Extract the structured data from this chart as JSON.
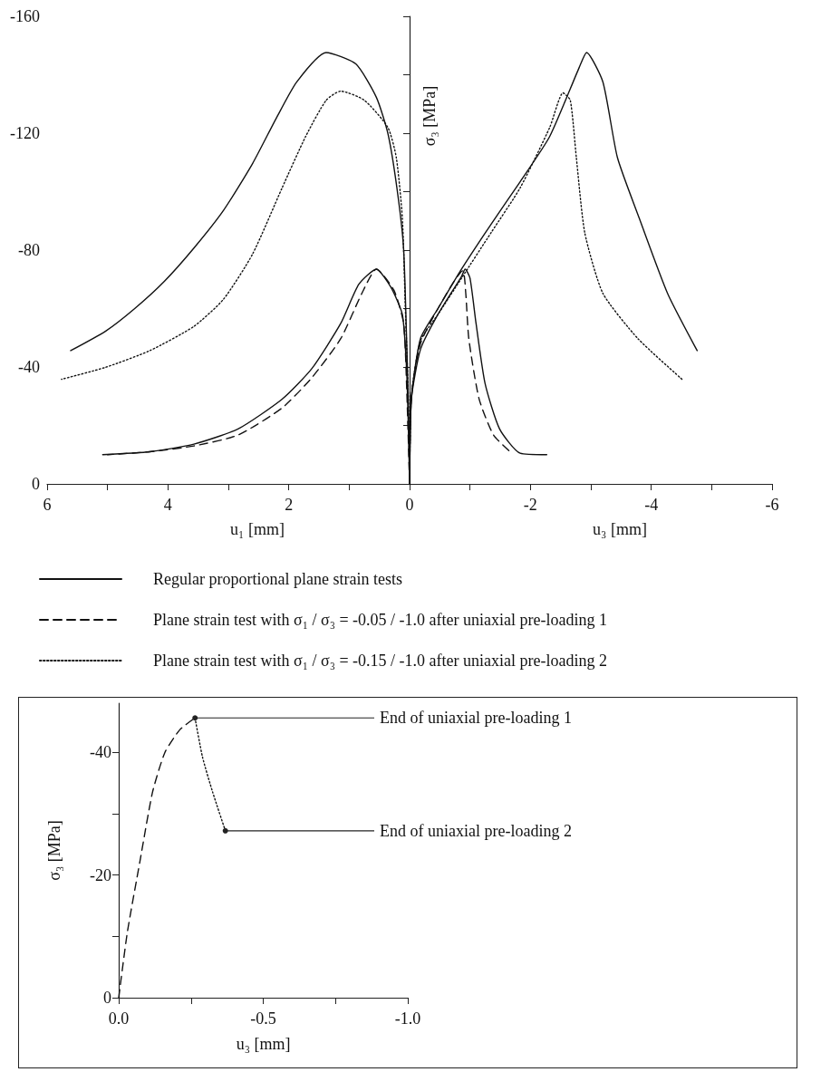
{
  "chart_data": [
    {
      "type": "line",
      "xlabel": "u₁ [mm]",
      "ylabel": "σ₃ [MPa]",
      "annotations": [
        "u₃ [mm]"
      ],
      "xlim": [
        6,
        -6
      ],
      "xticks": [
        6,
        {
          "value": 5,
          "label": null
        },
        4,
        {
          "value": 3,
          "label": null
        },
        2,
        {
          "value": 1,
          "label": null
        },
        0,
        {
          "value": -1,
          "label": null
        },
        -2,
        {
          "value": -3,
          "label": null
        },
        -4,
        {
          "value": -5,
          "label": null
        },
        -6
      ],
      "ylim": [
        0,
        -160
      ],
      "yticks": [
        0,
        {
          "value": -20,
          "label": null
        },
        -40,
        {
          "value": -60,
          "label": null
        },
        -80,
        {
          "value": -100,
          "label": null
        },
        -120,
        {
          "value": -140,
          "label": null
        },
        -160
      ],
      "legend": "bottom",
      "series": [
        {
          "name": "Regular proportional plane strain tests",
          "color": "#111111",
          "line_style": "solid",
          "x": [
            0,
            0.01,
            0.05,
            0.1,
            0.21,
            0.36,
            0.55,
            0.89,
            1.38,
            1.87,
            2.21,
            2.6,
            3.08,
            3.57,
            4.06,
            4.55,
            5.03,
            5.61
          ],
          "values": [
            0,
            -18.9,
            -49.8,
            -80.8,
            -101.3,
            -120,
            -132.3,
            -143.7,
            -147.6,
            -137.5,
            -125,
            -109.6,
            -93.6,
            -80.7,
            -69.3,
            -60,
            -52.3,
            -45.6
          ]
        },
        {
          "name": "Plane strain test with σ₁ / σ₃ = -0.05 / -1.0 after uniaxial pre-loading 1",
          "color": "#111111",
          "line_style": "dashed",
          "x": [
            0,
            0.05,
            0.1,
            0.26,
            0.55,
            0.79,
            1.14,
            1.62,
            2.11,
            2.84,
            3.57,
            4.3,
            5.0
          ],
          "values": [
            0,
            -34,
            -55,
            -66.3,
            -73.5,
            -65.2,
            -49.7,
            -36.3,
            -26,
            -16.7,
            -13,
            -11,
            -10
          ]
        },
        {
          "name": "Plane strain test with σ₁ / σ₃ = -0.15 / -1.0 after uniaxial pre-loading 2",
          "color": "#111111",
          "line_style": "dotted",
          "x": [
            0,
            0.02,
            0.07,
            0.12,
            0.22,
            0.36,
            0.75,
            1.14,
            1.38,
            1.72,
            2.11,
            2.6,
            3.08,
            3.57,
            4.3,
            5.03,
            5.76
          ],
          "values": [
            0,
            -29,
            -60,
            -91,
            -111.7,
            -122,
            -131.3,
            -134.4,
            -131.3,
            -118.9,
            -101.3,
            -78.6,
            -63.2,
            -53.9,
            -45.6,
            -39.9,
            -35.8
          ]
        },
        {
          "color": "#111111",
          "line_style": "solid",
          "x": [
            0,
            0.02,
            0.05,
            0.12,
            0.31,
            0.55,
            0.84,
            1.14,
            1.62,
            2.11,
            2.84,
            3.57,
            4.3,
            5.08
          ],
          "values": [
            0,
            -18.9,
            -39.4,
            -58,
            -67.3,
            -73.5,
            -68.3,
            -54.9,
            -39.4,
            -29,
            -18.8,
            -13.6,
            -11,
            -10
          ]
        },
        {
          "color": "#111111",
          "line_style": "solid",
          "x": [
            0,
            -0.03,
            -0.18,
            -0.47,
            -0.86,
            -1.35,
            -1.83,
            -2.32,
            -2.81,
            -2.93,
            -3.2,
            -3.44,
            -3.8,
            -4.27,
            -4.76
          ],
          "values": [
            0,
            -29.1,
            -49.7,
            -60,
            -73.5,
            -88.9,
            -103.4,
            -118.9,
            -142.6,
            -147.6,
            -137.5,
            -111.7,
            -91,
            -65.2,
            -45.6
          ]
        },
        {
          "color": "#111111",
          "line_style": "solid",
          "x": [
            0,
            -0.03,
            -0.18,
            -0.47,
            -0.86,
            -0.92,
            -1.0,
            -1.1,
            -1.25,
            -1.49,
            -1.83,
            -2.27
          ],
          "values": [
            0,
            -29,
            -46,
            -58,
            -71,
            -73.5,
            -70.4,
            -54.9,
            -34.3,
            -18.8,
            -10.5,
            -10
          ]
        },
        {
          "color": "#111111",
          "line_style": "dashed",
          "x": [
            0,
            -0.03,
            -0.18,
            -0.47,
            -0.88,
            -0.93,
            -0.98,
            -1.15,
            -1.39,
            -1.69
          ],
          "values": [
            0,
            -30,
            -48,
            -60,
            -72.9,
            -65.2,
            -49.7,
            -29.1,
            -16.7,
            -10.5
          ]
        },
        {
          "color": "#111111",
          "line_style": "dotted",
          "x": [
            0,
            -0.03,
            -0.18,
            -0.47,
            -0.86,
            -1.35,
            -1.83,
            -2.32,
            -2.54,
            -2.66,
            -2.76,
            -2.9,
            -3.2,
            -3.78,
            -4.51
          ],
          "values": [
            0,
            -30,
            -49,
            -58,
            -70.4,
            -86,
            -101.3,
            -122,
            -133.8,
            -131.3,
            -111.7,
            -85.9,
            -65.2,
            -49.7,
            -35.8
          ]
        }
      ]
    },
    {
      "type": "line",
      "xlabel": "u₃ [mm]",
      "ylabel": "σ₃ [MPa]",
      "xlim": [
        0,
        -1
      ],
      "xticks": [
        {
          "value": 0,
          "label": "0.0"
        },
        {
          "value": -0.25,
          "label": null
        },
        -0.5,
        {
          "value": -0.75,
          "label": null
        },
        {
          "value": -1,
          "label": "-1.0"
        }
      ],
      "ylim": [
        0,
        -48
      ],
      "yticks": [
        0,
        {
          "value": -10,
          "label": null
        },
        -20,
        {
          "value": -30,
          "label": null
        },
        -40
      ],
      "annotations": [
        {
          "text": "End of uniaxial pre-loading 1",
          "x": -0.264,
          "y": -45.6
        },
        {
          "text": "End of uniaxial pre-loading 2",
          "x": -0.369,
          "y": -27.2
        }
      ],
      "series": [
        {
          "color": "#111111",
          "line_style": "dashed",
          "x": [
            0,
            -0.03,
            -0.073,
            -0.117,
            -0.16,
            -0.212,
            -0.264
          ],
          "values": [
            0,
            -10.7,
            -22.1,
            -33.5,
            -40,
            -43.7,
            -45.6
          ]
        },
        {
          "color": "#111111",
          "line_style": "dotted",
          "x": [
            -0.264,
            -0.29,
            -0.325,
            -0.369
          ],
          "values": [
            -45.6,
            -39.2,
            -33.5,
            -27.2
          ]
        }
      ]
    }
  ]
}
